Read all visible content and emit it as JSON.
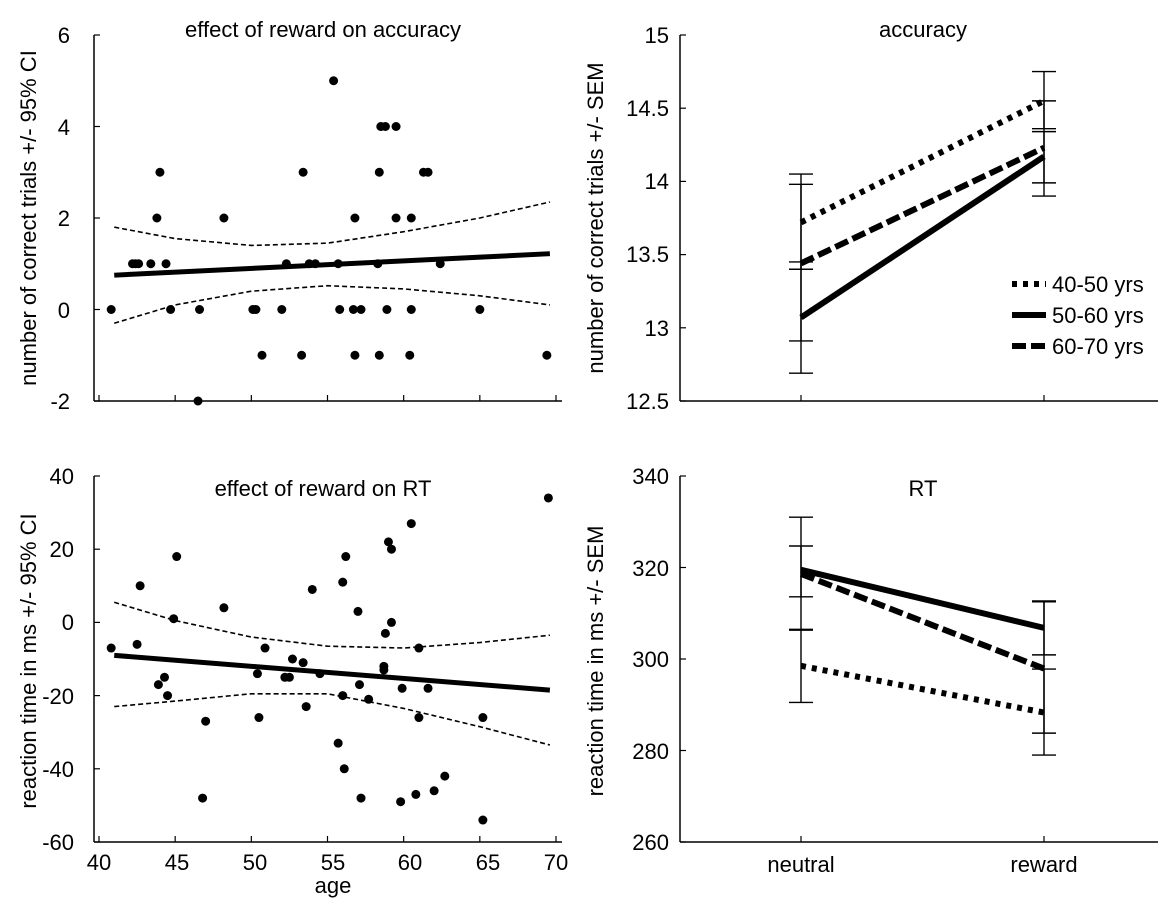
{
  "chart_data": [
    {
      "type": "scatter",
      "title": "effect of reward on accuracy",
      "xlabel": "",
      "ylabel": "number of correct trials +/- 95% CI",
      "xlim": [
        40,
        70
      ],
      "ylim": [
        -2,
        6
      ],
      "yticks": [
        "-2",
        "0",
        "2",
        "4",
        "6"
      ],
      "points": [
        [
          40.8,
          0
        ],
        [
          42.2,
          1
        ],
        [
          42.4,
          1
        ],
        [
          42.6,
          1
        ],
        [
          43.4,
          1
        ],
        [
          43.8,
          2
        ],
        [
          44.0,
          3
        ],
        [
          44.4,
          1
        ],
        [
          44.7,
          0
        ],
        [
          46.6,
          0
        ],
        [
          48.2,
          2
        ],
        [
          50.1,
          0
        ],
        [
          50.3,
          0
        ],
        [
          50.7,
          -1
        ],
        [
          52.0,
          0
        ],
        [
          52.3,
          1
        ],
        [
          53.3,
          -1
        ],
        [
          53.4,
          3
        ],
        [
          53.8,
          1
        ],
        [
          54.2,
          1
        ],
        [
          55.4,
          5
        ],
        [
          55.7,
          1
        ],
        [
          55.8,
          0
        ],
        [
          56.7,
          0
        ],
        [
          56.8,
          -1
        ],
        [
          56.8,
          2
        ],
        [
          57.2,
          0
        ],
        [
          58.3,
          1
        ],
        [
          58.4,
          -1
        ],
        [
          58.4,
          3
        ],
        [
          58.5,
          4
        ],
        [
          58.8,
          4
        ],
        [
          58.9,
          0
        ],
        [
          59.5,
          4
        ],
        [
          59.5,
          2
        ],
        [
          60.4,
          -1
        ],
        [
          60.5,
          0
        ],
        [
          60.5,
          2
        ],
        [
          61.3,
          3
        ],
        [
          61.6,
          3
        ],
        [
          62.4,
          1
        ],
        [
          65.0,
          0
        ],
        [
          69.4,
          -1
        ],
        [
          46.5,
          -2
        ]
      ],
      "fit": [
        [
          41,
          0.75
        ],
        [
          69.6,
          1.22
        ]
      ],
      "ci_upper": [
        [
          41,
          1.8
        ],
        [
          45,
          1.55
        ],
        [
          50,
          1.4
        ],
        [
          55,
          1.45
        ],
        [
          60,
          1.7
        ],
        [
          65,
          2.0
        ],
        [
          69.6,
          2.35
        ]
      ],
      "ci_lower": [
        [
          41,
          -0.3
        ],
        [
          45,
          0.1
        ],
        [
          50,
          0.4
        ],
        [
          55,
          0.52
        ],
        [
          60,
          0.45
        ],
        [
          65,
          0.3
        ],
        [
          69.6,
          0.1
        ]
      ]
    },
    {
      "type": "line",
      "title": "accuracy",
      "xlabel": "",
      "ylabel": "number of correct trials +/- SEM",
      "categories": [
        "neutral",
        "reward"
      ],
      "ylim": [
        12.5,
        15
      ],
      "yticks": [
        "12.5",
        "13",
        "13.5",
        "14",
        "14.5",
        "15"
      ],
      "legend_position": "right",
      "series": [
        {
          "name": "40-50 yrs",
          "style": "dotted",
          "values": [
            13.72,
            14.55
          ],
          "err_lo": [
            13.4,
            14.36
          ],
          "err_hi": [
            14.05,
            14.75
          ]
        },
        {
          "name": "50-60 yrs",
          "style": "solid",
          "values": [
            13.07,
            14.17
          ],
          "err_lo": [
            12.69,
            13.9
          ],
          "err_hi": [
            13.45,
            14.55
          ]
        },
        {
          "name": "60-70 yrs",
          "style": "dashed",
          "values": [
            13.44,
            14.23
          ],
          "err_lo": [
            12.91,
            13.99
          ],
          "err_hi": [
            13.98,
            14.34
          ]
        }
      ]
    },
    {
      "type": "scatter",
      "title": "effect of reward on RT",
      "xlabel": "age",
      "ylabel": "reaction time in ms +/- 95% CI",
      "xlim": [
        40,
        70
      ],
      "ylim": [
        -60,
        40
      ],
      "xticks": [
        "40",
        "45",
        "50",
        "55",
        "60",
        "65",
        "70"
      ],
      "yticks": [
        "-60",
        "-40",
        "-20",
        "0",
        "20",
        "40"
      ],
      "points": [
        [
          40.8,
          -7
        ],
        [
          42.5,
          -6
        ],
        [
          42.7,
          10
        ],
        [
          43.9,
          -17
        ],
        [
          44.3,
          -15
        ],
        [
          44.5,
          -20
        ],
        [
          44.9,
          1
        ],
        [
          45.1,
          18
        ],
        [
          46.8,
          -48
        ],
        [
          47.0,
          -27
        ],
        [
          48.2,
          4
        ],
        [
          50.4,
          -14
        ],
        [
          50.5,
          -26
        ],
        [
          50.9,
          -7
        ],
        [
          52.2,
          -15
        ],
        [
          52.5,
          -15
        ],
        [
          52.7,
          -10
        ],
        [
          53.4,
          -11
        ],
        [
          53.6,
          -23
        ],
        [
          54.0,
          9
        ],
        [
          54.5,
          -14
        ],
        [
          55.7,
          -33
        ],
        [
          56.0,
          11
        ],
        [
          56.0,
          -20
        ],
        [
          56.1,
          -40
        ],
        [
          56.2,
          18
        ],
        [
          57.0,
          3
        ],
        [
          57.1,
          -17
        ],
        [
          57.2,
          -48
        ],
        [
          57.7,
          -21
        ],
        [
          58.7,
          -12
        ],
        [
          58.7,
          -13
        ],
        [
          58.8,
          -3
        ],
        [
          59.0,
          22
        ],
        [
          59.2,
          20
        ],
        [
          59.2,
          0
        ],
        [
          59.8,
          -49
        ],
        [
          59.9,
          -18
        ],
        [
          60.5,
          27
        ],
        [
          60.8,
          -47
        ],
        [
          61.0,
          -26
        ],
        [
          61.0,
          -7
        ],
        [
          61.6,
          -18
        ],
        [
          62.0,
          -46
        ],
        [
          62.7,
          -42
        ],
        [
          65.2,
          -26
        ],
        [
          65.2,
          -54
        ],
        [
          69.5,
          34
        ]
      ],
      "fit": [
        [
          41,
          -9
        ],
        [
          69.6,
          -18.5
        ]
      ],
      "ci_upper": [
        [
          41,
          5.5
        ],
        [
          45,
          0.5
        ],
        [
          50,
          -4
        ],
        [
          55,
          -6.5
        ],
        [
          60,
          -7
        ],
        [
          65,
          -5.5
        ],
        [
          69.6,
          -3.5
        ]
      ],
      "ci_lower": [
        [
          41,
          -23
        ],
        [
          45,
          -21.5
        ],
        [
          50,
          -19.5
        ],
        [
          55,
          -19.5
        ],
        [
          60,
          -23.5
        ],
        [
          65,
          -28.5
        ],
        [
          69.6,
          -33.5
        ]
      ]
    },
    {
      "type": "line",
      "title": "RT",
      "xlabel": "",
      "ylabel": "reaction time in ms +/- SEM",
      "categories": [
        "neutral",
        "reward"
      ],
      "ylim": [
        260,
        340
      ],
      "yticks": [
        "260",
        "280",
        "300",
        "320",
        "340"
      ],
      "series": [
        {
          "name": "40-50 yrs",
          "style": "dotted",
          "values": [
            298.5,
            288.3
          ],
          "err_lo": [
            290.5,
            279.0
          ],
          "err_hi": [
            306.5,
            297.8
          ]
        },
        {
          "name": "50-60 yrs",
          "style": "solid",
          "values": [
            319.5,
            306.8
          ],
          "err_lo": [
            306.3,
            300.9
          ],
          "err_hi": [
            331.0,
            312.7
          ]
        },
        {
          "name": "60-70 yrs",
          "style": "dashed",
          "values": [
            318.6,
            297.9
          ],
          "err_lo": [
            313.6,
            283.8
          ],
          "err_hi": [
            324.7,
            312.5
          ]
        }
      ]
    }
  ]
}
